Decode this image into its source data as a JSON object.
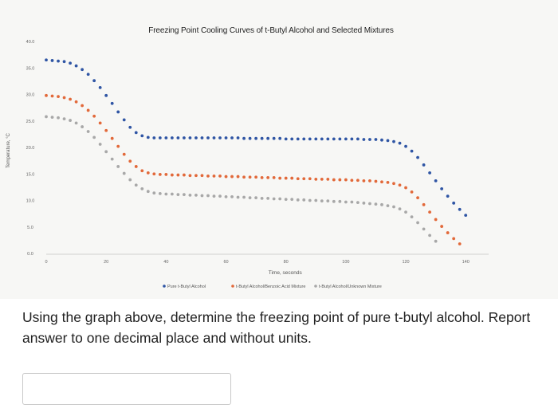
{
  "chart_data": {
    "type": "scatter",
    "title": "Freezing Point Cooling Curves of t-Butyl Alcohol and Selected Mixtures",
    "xlabel": "Time, seconds",
    "ylabel": "Temperature, °C",
    "xlim": [
      0,
      145
    ],
    "ylim": [
      0,
      40
    ],
    "x_ticks": [
      "0",
      "20",
      "40",
      "60",
      "80",
      "100",
      "120",
      "140"
    ],
    "y_ticks": [
      "0.0",
      "5.0",
      "10.0",
      "15.0",
      "20.0",
      "25.0",
      "30.0",
      "35.0",
      "40.0"
    ],
    "grid": false,
    "legend_position": "bottom",
    "series": [
      {
        "name": "Pure t-Butyl Alcohol",
        "color": "#2f55a4",
        "points": [
          [
            0,
            36.5
          ],
          [
            2,
            36.4
          ],
          [
            4,
            36.3
          ],
          [
            6,
            36.2
          ],
          [
            8,
            35.9
          ],
          [
            10,
            35.4
          ],
          [
            12,
            34.7
          ],
          [
            14,
            33.8
          ],
          [
            16,
            32.6
          ],
          [
            18,
            31.3
          ],
          [
            20,
            29.8
          ],
          [
            22,
            28.3
          ],
          [
            24,
            26.7
          ],
          [
            26,
            25.2
          ],
          [
            28,
            23.8
          ],
          [
            30,
            22.8
          ],
          [
            32,
            22.2
          ],
          [
            34,
            21.9
          ],
          [
            36,
            21.8
          ],
          [
            38,
            21.8
          ],
          [
            40,
            21.8
          ],
          [
            42,
            21.8
          ],
          [
            44,
            21.8
          ],
          [
            46,
            21.8
          ],
          [
            48,
            21.8
          ],
          [
            50,
            21.8
          ],
          [
            52,
            21.8
          ],
          [
            54,
            21.8
          ],
          [
            56,
            21.8
          ],
          [
            58,
            21.8
          ],
          [
            60,
            21.8
          ],
          [
            62,
            21.8
          ],
          [
            64,
            21.8
          ],
          [
            66,
            21.7
          ],
          [
            68,
            21.7
          ],
          [
            70,
            21.7
          ],
          [
            72,
            21.7
          ],
          [
            74,
            21.7
          ],
          [
            76,
            21.7
          ],
          [
            78,
            21.7
          ],
          [
            80,
            21.6
          ],
          [
            82,
            21.6
          ],
          [
            84,
            21.6
          ],
          [
            86,
            21.6
          ],
          [
            88,
            21.6
          ],
          [
            90,
            21.6
          ],
          [
            92,
            21.6
          ],
          [
            94,
            21.6
          ],
          [
            96,
            21.6
          ],
          [
            98,
            21.6
          ],
          [
            100,
            21.6
          ],
          [
            102,
            21.6
          ],
          [
            104,
            21.6
          ],
          [
            106,
            21.5
          ],
          [
            108,
            21.5
          ],
          [
            110,
            21.5
          ],
          [
            112,
            21.4
          ],
          [
            114,
            21.3
          ],
          [
            116,
            21.1
          ],
          [
            118,
            20.8
          ],
          [
            120,
            20.2
          ],
          [
            122,
            19.3
          ],
          [
            124,
            18.1
          ],
          [
            126,
            16.7
          ],
          [
            128,
            15.2
          ],
          [
            130,
            13.7
          ],
          [
            132,
            12.2
          ],
          [
            134,
            10.8
          ],
          [
            136,
            9.5
          ],
          [
            138,
            8.3
          ],
          [
            140,
            7.2
          ]
        ]
      },
      {
        "name": "t-Butyl Alcohol/Benzoic Acid Mixture",
        "color": "#e2693a",
        "points": [
          [
            0,
            29.8
          ],
          [
            2,
            29.7
          ],
          [
            4,
            29.6
          ],
          [
            6,
            29.4
          ],
          [
            8,
            29.1
          ],
          [
            10,
            28.6
          ],
          [
            12,
            27.9
          ],
          [
            14,
            27.0
          ],
          [
            16,
            25.9
          ],
          [
            18,
            24.6
          ],
          [
            20,
            23.2
          ],
          [
            22,
            21.7
          ],
          [
            24,
            20.2
          ],
          [
            26,
            18.7
          ],
          [
            28,
            17.4
          ],
          [
            30,
            16.4
          ],
          [
            32,
            15.6
          ],
          [
            34,
            15.2
          ],
          [
            36,
            15.0
          ],
          [
            38,
            14.9
          ],
          [
            40,
            14.9
          ],
          [
            42,
            14.8
          ],
          [
            44,
            14.8
          ],
          [
            46,
            14.8
          ],
          [
            48,
            14.7
          ],
          [
            50,
            14.7
          ],
          [
            52,
            14.7
          ],
          [
            54,
            14.6
          ],
          [
            56,
            14.6
          ],
          [
            58,
            14.6
          ],
          [
            60,
            14.5
          ],
          [
            62,
            14.5
          ],
          [
            64,
            14.5
          ],
          [
            66,
            14.4
          ],
          [
            68,
            14.4
          ],
          [
            70,
            14.4
          ],
          [
            72,
            14.3
          ],
          [
            74,
            14.3
          ],
          [
            76,
            14.3
          ],
          [
            78,
            14.2
          ],
          [
            80,
            14.2
          ],
          [
            82,
            14.2
          ],
          [
            84,
            14.1
          ],
          [
            86,
            14.1
          ],
          [
            88,
            14.1
          ],
          [
            90,
            14.0
          ],
          [
            92,
            14.0
          ],
          [
            94,
            14.0
          ],
          [
            96,
            13.9
          ],
          [
            98,
            13.9
          ],
          [
            100,
            13.9
          ],
          [
            102,
            13.8
          ],
          [
            104,
            13.8
          ],
          [
            106,
            13.7
          ],
          [
            108,
            13.7
          ],
          [
            110,
            13.6
          ],
          [
            112,
            13.5
          ],
          [
            114,
            13.4
          ],
          [
            116,
            13.2
          ],
          [
            118,
            12.9
          ],
          [
            120,
            12.4
          ],
          [
            122,
            11.6
          ],
          [
            124,
            10.5
          ],
          [
            126,
            9.2
          ],
          [
            128,
            7.8
          ],
          [
            130,
            6.4
          ],
          [
            132,
            5.1
          ],
          [
            134,
            3.9
          ],
          [
            136,
            2.8
          ],
          [
            138,
            1.8
          ]
        ]
      },
      {
        "name": "t-Butyl Alcohol/Unknown Mixture",
        "color": "#a8a8a8",
        "points": [
          [
            0,
            25.8
          ],
          [
            2,
            25.7
          ],
          [
            4,
            25.6
          ],
          [
            6,
            25.4
          ],
          [
            8,
            25.1
          ],
          [
            10,
            24.6
          ],
          [
            12,
            23.9
          ],
          [
            14,
            23.0
          ],
          [
            16,
            21.9
          ],
          [
            18,
            20.6
          ],
          [
            20,
            19.2
          ],
          [
            22,
            17.8
          ],
          [
            24,
            16.4
          ],
          [
            26,
            15.1
          ],
          [
            28,
            13.9
          ],
          [
            30,
            12.9
          ],
          [
            32,
            12.2
          ],
          [
            34,
            11.7
          ],
          [
            36,
            11.4
          ],
          [
            38,
            11.3
          ],
          [
            40,
            11.2
          ],
          [
            42,
            11.2
          ],
          [
            44,
            11.1
          ],
          [
            46,
            11.1
          ],
          [
            48,
            11.0
          ],
          [
            50,
            11.0
          ],
          [
            52,
            10.9
          ],
          [
            54,
            10.9
          ],
          [
            56,
            10.8
          ],
          [
            58,
            10.8
          ],
          [
            60,
            10.7
          ],
          [
            62,
            10.7
          ],
          [
            64,
            10.6
          ],
          [
            66,
            10.6
          ],
          [
            68,
            10.5
          ],
          [
            70,
            10.5
          ],
          [
            72,
            10.4
          ],
          [
            74,
            10.4
          ],
          [
            76,
            10.3
          ],
          [
            78,
            10.3
          ],
          [
            80,
            10.2
          ],
          [
            82,
            10.2
          ],
          [
            84,
            10.1
          ],
          [
            86,
            10.1
          ],
          [
            88,
            10.0
          ],
          [
            90,
            10.0
          ],
          [
            92,
            9.9
          ],
          [
            94,
            9.9
          ],
          [
            96,
            9.8
          ],
          [
            98,
            9.8
          ],
          [
            100,
            9.7
          ],
          [
            102,
            9.7
          ],
          [
            104,
            9.6
          ],
          [
            106,
            9.5
          ],
          [
            108,
            9.4
          ],
          [
            110,
            9.3
          ],
          [
            112,
            9.2
          ],
          [
            114,
            9.0
          ],
          [
            116,
            8.8
          ],
          [
            118,
            8.4
          ],
          [
            120,
            7.8
          ],
          [
            122,
            6.9
          ],
          [
            124,
            5.8
          ],
          [
            126,
            4.6
          ],
          [
            128,
            3.4
          ],
          [
            130,
            2.3
          ]
        ]
      }
    ]
  },
  "question": {
    "text": "Using the graph above, determine the freezing point of pure t-butyl alcohol. Report answer to one decimal place and without units."
  },
  "answer": {
    "value": ""
  }
}
